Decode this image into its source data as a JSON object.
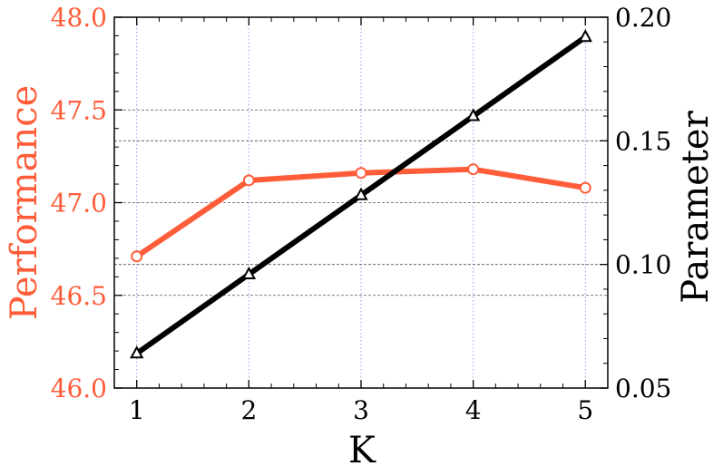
{
  "chart_data": {
    "type": "line",
    "xlabel": "K",
    "x": [
      1,
      2,
      3,
      4,
      5
    ],
    "x_tick_labels": [
      "1",
      "2",
      "3",
      "4",
      "5"
    ],
    "xlim": [
      0.8,
      5.2
    ],
    "left_axis": {
      "label": "Performance",
      "ylim": [
        46.0,
        48.0
      ],
      "tick_labels": [
        "46.0",
        "46.5",
        "47.0",
        "47.5",
        "48.0"
      ],
      "color": "#ff5c39"
    },
    "right_axis": {
      "label": "Parameter",
      "ylim": [
        0.05,
        0.2
      ],
      "tick_labels": [
        "0.05",
        "0.10",
        "0.15",
        "0.20"
      ],
      "color": "#000000"
    },
    "series": [
      {
        "axis": "left",
        "values": [
          46.71,
          47.12,
          47.16,
          47.18,
          47.08
        ],
        "marker": "circle",
        "color": "#ff5c39"
      },
      {
        "axis": "right",
        "values": [
          0.064,
          0.096,
          0.128,
          0.16,
          0.192
        ],
        "marker": "triangle",
        "color": "#000000"
      }
    ],
    "vertical_grid": true,
    "horizontal_grid": true
  }
}
